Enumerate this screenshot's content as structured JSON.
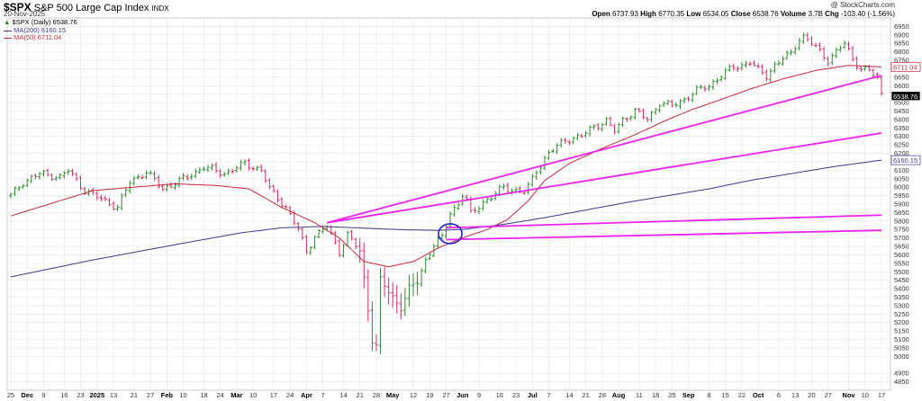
{
  "header": {
    "symbol": "$SPX",
    "name": "S&P 500 Large Cap Index",
    "exchange": "INDX",
    "date": "20-Nov-2025",
    "copyright": "@ StockCharts.com",
    "legend": {
      "price": "$SPX (Daily) 6538.76",
      "ma200": "MA(200) 6160.15",
      "ma50": "MA(50) 6711.04"
    },
    "stats": {
      "open_label": "Open",
      "open": "6737.93",
      "high_label": "High",
      "high": "6770.35",
      "low_label": "Low",
      "low": "6534.05",
      "close_label": "Close",
      "close": "6538.76",
      "volume_label": "Volume",
      "volume": "3.7B",
      "chg_label": "Chg",
      "chg": "-103.40 (-1.56%)"
    }
  },
  "colors": {
    "up": "#2e8b2e",
    "down": "#d03060",
    "ma200": "#3a3a8c",
    "ma50": "#c8283c",
    "trendline": "#ee22ee",
    "circle": "#2222cc",
    "grid": "#e4e4e4"
  },
  "chart_data": {
    "type": "ohlc",
    "ylim": [
      4800,
      7000
    ],
    "y_ticks": [
      4850,
      4900,
      5000,
      5050,
      5100,
      5150,
      5200,
      5250,
      5300,
      5350,
      5400,
      5450,
      5500,
      5550,
      5600,
      5650,
      5700,
      5750,
      5800,
      5850,
      5900,
      5950,
      6000,
      6050,
      6100,
      6150,
      6200,
      6250,
      6300,
      6350,
      6400,
      6450,
      6500,
      6550,
      6600,
      6650,
      6700,
      6750,
      6800,
      6850,
      6900,
      6950
    ],
    "x_tick_labels": [
      "25",
      "Dec",
      "9",
      "16",
      "23",
      "2025",
      "13",
      "21",
      "27",
      "Feb",
      "10",
      "18",
      "24",
      "Mar",
      "10",
      "17",
      "24",
      "Apr",
      "7",
      "14",
      "21",
      "28",
      "May",
      "12",
      "19",
      "27",
      "Jun",
      "9",
      "16",
      "23",
      "Jul",
      "7",
      "14",
      "21",
      "28",
      "Aug",
      "11",
      "18",
      "25",
      "Sep",
      "8",
      "15",
      "22",
      "Oct",
      "6",
      "13",
      "20",
      "27",
      "Nov",
      "10",
      "17"
    ],
    "bold_x_ticks": [
      "Dec",
      "2025",
      "Feb",
      "Mar",
      "Apr",
      "May",
      "Jun",
      "Jul",
      "Aug",
      "Sep",
      "Oct",
      "Nov"
    ],
    "price_labels": [
      "6711.04",
      "6538.76",
      "6160.15"
    ],
    "anchors": [
      [
        0,
        5950
      ],
      [
        3,
        6030
      ],
      [
        7,
        6080
      ],
      [
        12,
        6060
      ],
      [
        14,
        6100
      ],
      [
        18,
        5980
      ],
      [
        22,
        5930
      ],
      [
        26,
        5880
      ],
      [
        29,
        6030
      ],
      [
        33,
        6090
      ],
      [
        37,
        5990
      ],
      [
        43,
        6060
      ],
      [
        47,
        6120
      ],
      [
        52,
        6080
      ],
      [
        57,
        6140
      ],
      [
        61,
        6100
      ],
      [
        63,
        5990
      ],
      [
        67,
        5880
      ],
      [
        70,
        5750
      ],
      [
        72,
        5620
      ],
      [
        74,
        5710
      ],
      [
        77,
        5770
      ],
      [
        80,
        5620
      ],
      [
        82,
        5720
      ],
      [
        85,
        5620
      ],
      [
        86,
        5460
      ],
      [
        88,
        5100
      ],
      [
        89,
        5060
      ],
      [
        90,
        5450
      ],
      [
        92,
        5380
      ],
      [
        95,
        5290
      ],
      [
        97,
        5400
      ],
      [
        99,
        5440
      ],
      [
        101,
        5570
      ],
      [
        103,
        5660
      ],
      [
        105,
        5700
      ],
      [
        107,
        5850
      ],
      [
        109,
        5900
      ],
      [
        110,
        5958
      ],
      [
        111,
        5920
      ],
      [
        112,
        5840
      ],
      [
        115,
        5912
      ],
      [
        117,
        5940
      ],
      [
        120,
        6000
      ],
      [
        123,
        5980
      ],
      [
        125,
        5970
      ],
      [
        126,
        6000
      ],
      [
        128,
        6100
      ],
      [
        131,
        6200
      ],
      [
        135,
        6280
      ],
      [
        139,
        6300
      ],
      [
        142,
        6360
      ],
      [
        145,
        6390
      ],
      [
        147,
        6330
      ],
      [
        149,
        6400
      ],
      [
        152,
        6450
      ],
      [
        155,
        6400
      ],
      [
        158,
        6500
      ],
      [
        161,
        6480
      ],
      [
        164,
        6520
      ],
      [
        167,
        6570
      ],
      [
        170,
        6600
      ],
      [
        173,
        6660
      ],
      [
        176,
        6710
      ],
      [
        178,
        6720
      ],
      [
        180,
        6740
      ],
      [
        182,
        6690
      ],
      [
        184,
        6660
      ],
      [
        186,
        6720
      ],
      [
        188,
        6760
      ],
      [
        190,
        6790
      ],
      [
        192,
        6880
      ],
      [
        193,
        6890
      ],
      [
        195,
        6850
      ],
      [
        197,
        6800
      ],
      [
        199,
        6750
      ],
      [
        201,
        6800
      ],
      [
        203,
        6850
      ],
      [
        205,
        6760
      ],
      [
        207,
        6700
      ],
      [
        209,
        6690
      ],
      [
        211,
        6640
      ],
      [
        212,
        6550
      ]
    ],
    "ma50_anchors": [
      [
        0,
        5830
      ],
      [
        20,
        5980
      ],
      [
        40,
        6020
      ],
      [
        50,
        6010
      ],
      [
        58,
        5990
      ],
      [
        66,
        5880
      ],
      [
        74,
        5790
      ],
      [
        80,
        5700
      ],
      [
        86,
        5560
      ],
      [
        92,
        5530
      ],
      [
        98,
        5560
      ],
      [
        104,
        5640
      ],
      [
        110,
        5700
      ],
      [
        116,
        5750
      ],
      [
        121,
        5810
      ],
      [
        126,
        5920
      ],
      [
        130,
        6040
      ],
      [
        136,
        6140
      ],
      [
        144,
        6230
      ],
      [
        152,
        6310
      ],
      [
        160,
        6400
      ],
      [
        166,
        6460
      ],
      [
        172,
        6510
      ],
      [
        180,
        6580
      ],
      [
        188,
        6640
      ],
      [
        196,
        6690
      ],
      [
        204,
        6720
      ],
      [
        212,
        6711
      ]
    ],
    "ma200_anchors": [
      [
        0,
        5470
      ],
      [
        20,
        5570
      ],
      [
        40,
        5660
      ],
      [
        56,
        5730
      ],
      [
        66,
        5760
      ],
      [
        76,
        5768
      ],
      [
        86,
        5758
      ],
      [
        96,
        5748
      ],
      [
        104,
        5745
      ],
      [
        110,
        5750
      ],
      [
        120,
        5780
      ],
      [
        130,
        5820
      ],
      [
        140,
        5865
      ],
      [
        150,
        5910
      ],
      [
        160,
        5950
      ],
      [
        170,
        5990
      ],
      [
        180,
        6040
      ],
      [
        190,
        6080
      ],
      [
        200,
        6120
      ],
      [
        212,
        6160
      ]
    ],
    "trendlines": [
      {
        "from": [
          77,
          5790
        ],
        "to": [
          212,
          6320
        ]
      },
      {
        "from": [
          106,
          5760
        ],
        "to": [
          212,
          5835
        ]
      },
      {
        "from": [
          106,
          5690
        ],
        "to": [
          212,
          5745
        ]
      },
      {
        "from": [
          77,
          5790
        ],
        "to": [
          212,
          6660
        ]
      }
    ],
    "highlight_circle": {
      "x": 107,
      "y": 5725
    }
  }
}
